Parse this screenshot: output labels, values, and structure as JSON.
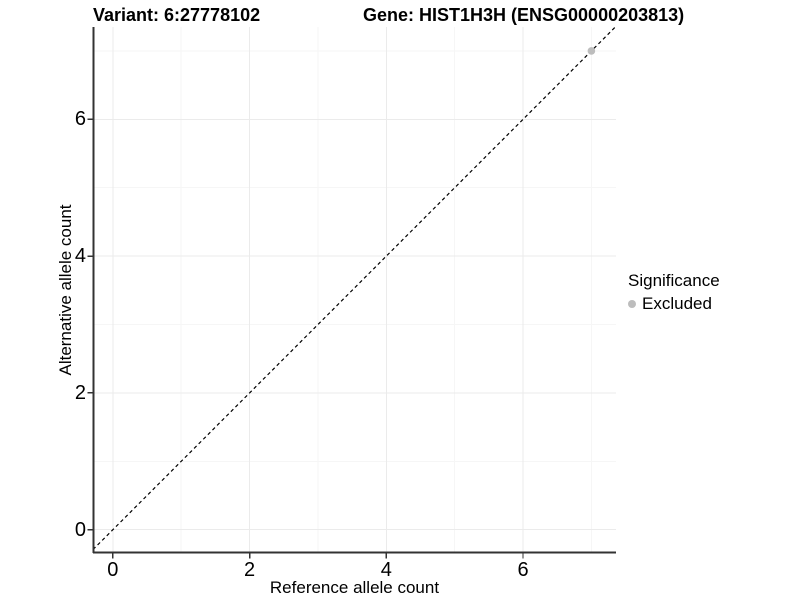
{
  "title": {
    "variant_label": "Variant: 6:27778102",
    "gene_label": "Gene: HIST1H3H (ENSG00000203813)"
  },
  "axes": {
    "x_label": "Reference allele count",
    "y_label": "Alternative allele count"
  },
  "legend": {
    "title": "Significance",
    "items": [
      {
        "label": "Excluded",
        "color": "#bdbdbd"
      }
    ]
  },
  "colors": {
    "background": "#ffffff",
    "axis_line": "#333333",
    "tick_mark": "#333333",
    "grid_major": "#ebebeb",
    "grid_minor": "#f6f6f6",
    "identity_line": "#000000",
    "excluded_point": "#bdbdbd",
    "text": "#000000"
  },
  "chart_data": {
    "type": "scatter",
    "title": "Variant: 6:27778102   Gene: HIST1H3H (ENSG00000203813)",
    "xlabel": "Reference allele count",
    "ylabel": "Alternative allele count",
    "x_ticks": [
      0,
      2,
      4,
      6
    ],
    "y_ticks": [
      0,
      2,
      4,
      6
    ],
    "x_minor_breaks": [
      1,
      3,
      5,
      7
    ],
    "y_minor_breaks": [
      1,
      3,
      5,
      7
    ],
    "xlim": [
      -0.29,
      7.36
    ],
    "ylim": [
      -0.34,
      7.35
    ],
    "grid": true,
    "legend_position": "right",
    "series": [
      {
        "name": "Excluded",
        "color": "#bdbdbd",
        "points": [
          {
            "x": 7,
            "y": 7
          }
        ]
      }
    ],
    "identity_line": {
      "slope": 1,
      "intercept": 0,
      "style": "dashed",
      "color": "#000000"
    }
  }
}
